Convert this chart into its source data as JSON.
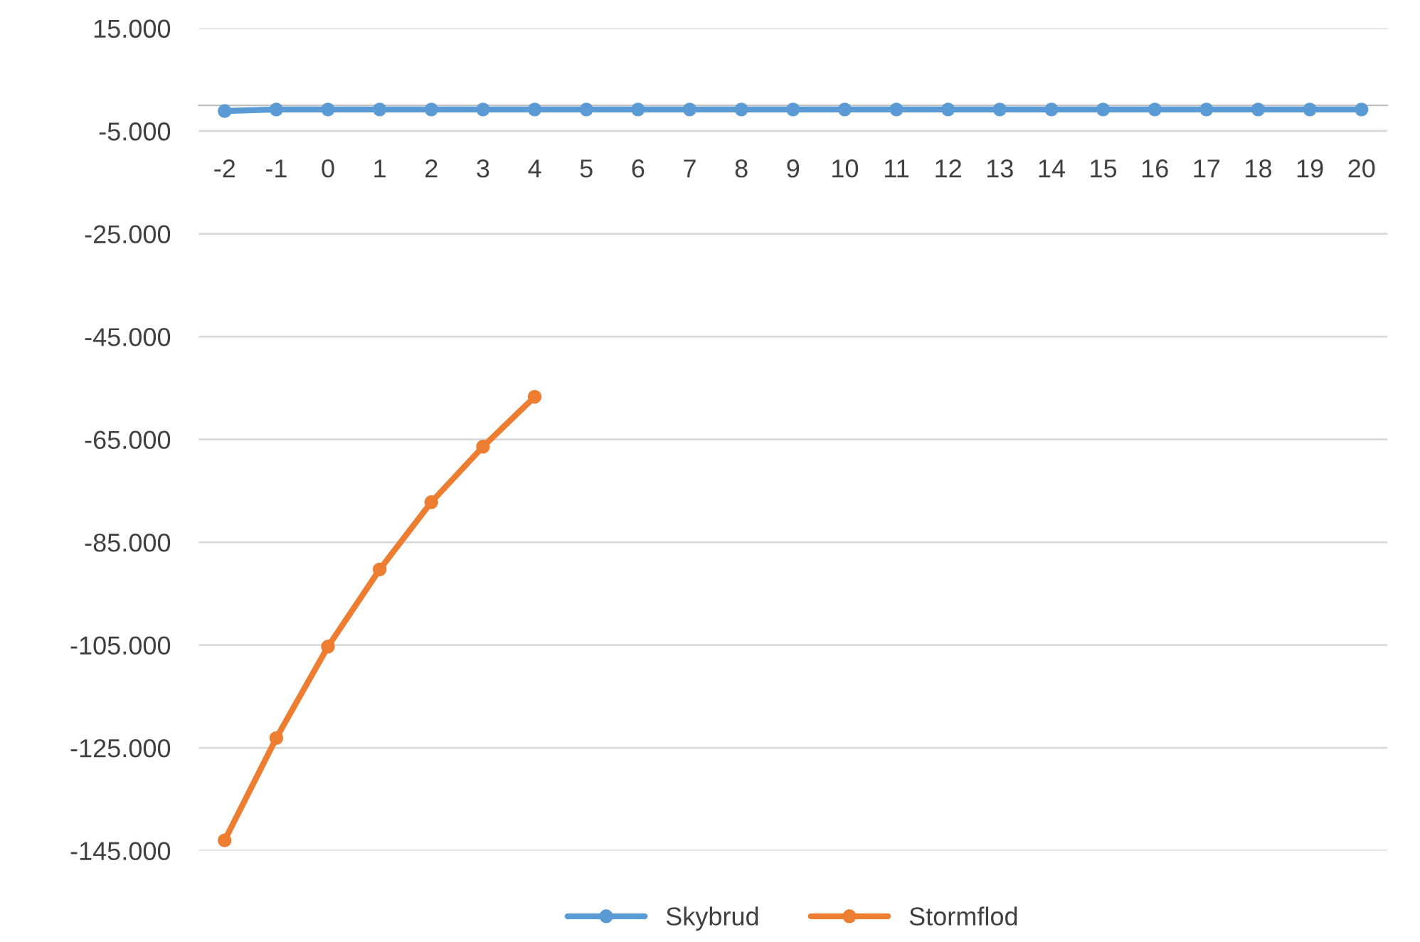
{
  "chart_data": {
    "type": "line",
    "categories": [
      "-2",
      "-1",
      "0",
      "1",
      "2",
      "3",
      "4",
      "5",
      "6",
      "7",
      "8",
      "9",
      "10",
      "11",
      "12",
      "13",
      "14",
      "15",
      "16",
      "17",
      "18",
      "19",
      "20"
    ],
    "series": [
      {
        "name": "Skybrud",
        "color": "#5b9bd5",
        "values": [
          -1100,
          -800,
          -800,
          -800,
          -800,
          -800,
          -800,
          -800,
          -800,
          -800,
          -800,
          -800,
          -800,
          -800,
          -800,
          -800,
          -800,
          -800,
          -800,
          -800,
          -800,
          -800,
          -800
        ]
      },
      {
        "name": "Stormflod",
        "color": "#ed7d31",
        "values": [
          -143000,
          -123100,
          -105300,
          -90300,
          -77200,
          -66400,
          -56700,
          null,
          null,
          null,
          null,
          null,
          null,
          null,
          null,
          null,
          null,
          null,
          null,
          null,
          null,
          null,
          null
        ]
      }
    ],
    "ylim": [
      -145000,
      15000
    ],
    "yticks": [
      {
        "value": 15000,
        "label": "15.000"
      },
      {
        "value": -5000,
        "label": "-5.000"
      },
      {
        "value": -25000,
        "label": "-25.000"
      },
      {
        "value": -45000,
        "label": "-45.000"
      },
      {
        "value": -65000,
        "label": "-65.000"
      },
      {
        "value": -85000,
        "label": "-85.000"
      },
      {
        "value": -105000,
        "label": "-105.000"
      },
      {
        "value": -125000,
        "label": "-125.000"
      },
      {
        "value": -145000,
        "label": "-145.000"
      }
    ],
    "grid": "y",
    "legend": "bottom",
    "marker": "circle",
    "line_style": "solid"
  }
}
